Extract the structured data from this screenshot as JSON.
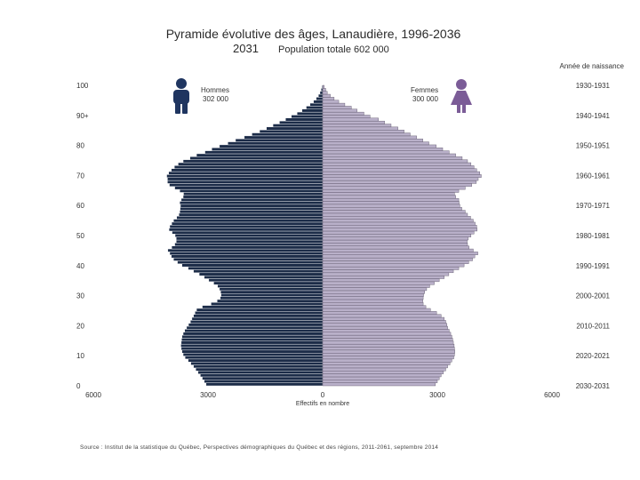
{
  "title": "Pyramide évolutive des âges, Lanaudière, 1996-2036",
  "year": "2031",
  "total_label": "Population totale 602 000",
  "birth_year_title": "Année de naissance",
  "men": {
    "label": "Hommes",
    "count": "302 000",
    "color": "#1c2c48"
  },
  "women": {
    "label": "Femmes",
    "count": "300 000",
    "color": "#b9b0c9"
  },
  "icon_colors": {
    "men": "#1f3560",
    "women": "#7b5c97"
  },
  "source": "Source : Institut de la statistique du Québec, Perspectives démographiques du Québec et des régions, 2011-2061, septembre 2014",
  "chart_data": {
    "type": "bar",
    "orientation": "horizontal-pyramid",
    "title": "Pyramide évolutive des âges, Lanaudière, 1996-2036",
    "xlabel": "Effectifs en nombre",
    "ylabel": "",
    "xlim": [
      -6000,
      6000
    ],
    "ylim": [
      0,
      100
    ],
    "xticks": [
      -6000,
      -3000,
      0,
      3000,
      6000
    ],
    "xtick_labels": [
      "6000",
      "3000",
      "0",
      "3000",
      "6000"
    ],
    "ytick_labels": [
      "0",
      "10",
      "20",
      "30",
      "40",
      "50",
      "60",
      "70",
      "80",
      "90+",
      "100"
    ],
    "ytick_values": [
      0,
      10,
      20,
      30,
      40,
      50,
      60,
      70,
      80,
      90,
      100
    ],
    "birth_labels": [
      "2030-2031",
      "2020-2021",
      "2010-2011",
      "2000-2001",
      "1990-1991",
      "1980-1981",
      "1970-1971",
      "1960-1961",
      "1950-1951",
      "1940-1941",
      "1930-1931"
    ],
    "birth_label_ages": [
      0,
      10,
      20,
      30,
      40,
      50,
      60,
      70,
      80,
      90,
      100
    ],
    "ages": [
      0,
      1,
      2,
      3,
      4,
      5,
      6,
      7,
      8,
      9,
      10,
      11,
      12,
      13,
      14,
      15,
      16,
      17,
      18,
      19,
      20,
      21,
      22,
      23,
      24,
      25,
      26,
      27,
      28,
      29,
      30,
      31,
      32,
      33,
      34,
      35,
      36,
      37,
      38,
      39,
      40,
      41,
      42,
      43,
      44,
      45,
      46,
      47,
      48,
      49,
      50,
      51,
      52,
      53,
      54,
      55,
      56,
      57,
      58,
      59,
      60,
      61,
      62,
      63,
      64,
      65,
      66,
      67,
      68,
      69,
      70,
      71,
      72,
      73,
      74,
      75,
      76,
      77,
      78,
      79,
      80,
      81,
      82,
      83,
      84,
      85,
      86,
      87,
      88,
      89,
      90,
      91,
      92,
      93,
      94,
      95,
      96,
      97,
      98,
      99,
      100
    ],
    "series": [
      {
        "name": "Hommes",
        "values": [
          3050,
          3100,
          3150,
          3200,
          3260,
          3320,
          3380,
          3450,
          3520,
          3600,
          3650,
          3680,
          3700,
          3710,
          3700,
          3690,
          3680,
          3650,
          3610,
          3560,
          3510,
          3460,
          3420,
          3380,
          3340,
          3300,
          3150,
          2920,
          2760,
          2680,
          2660,
          2670,
          2700,
          2750,
          2850,
          2980,
          3100,
          3230,
          3380,
          3520,
          3680,
          3800,
          3900,
          3960,
          4000,
          4050,
          3950,
          3870,
          3830,
          3830,
          3860,
          3940,
          4020,
          4000,
          3950,
          3900,
          3820,
          3760,
          3740,
          3730,
          3720,
          3740,
          3700,
          3650,
          3640,
          3740,
          3870,
          4010,
          4060,
          4060,
          4080,
          4030,
          3960,
          3880,
          3780,
          3650,
          3470,
          3300,
          3080,
          2900,
          2700,
          2480,
          2280,
          2050,
          1850,
          1650,
          1470,
          1300,
          1130,
          970,
          820,
          670,
          540,
          430,
          330,
          240,
          170,
          110,
          70,
          40,
          20
        ]
      },
      {
        "name": "Femmes",
        "values": [
          2950,
          3000,
          3050,
          3100,
          3160,
          3220,
          3270,
          3330,
          3380,
          3430,
          3450,
          3460,
          3450,
          3440,
          3420,
          3400,
          3380,
          3350,
          3310,
          3270,
          3250,
          3220,
          3180,
          3100,
          2980,
          2820,
          2700,
          2630,
          2620,
          2630,
          2640,
          2670,
          2720,
          2800,
          2920,
          3050,
          3180,
          3300,
          3420,
          3560,
          3700,
          3820,
          3920,
          3980,
          4060,
          3940,
          3830,
          3790,
          3780,
          3810,
          3880,
          3960,
          4040,
          4030,
          3990,
          3940,
          3870,
          3790,
          3730,
          3640,
          3590,
          3570,
          3560,
          3480,
          3450,
          3560,
          3730,
          3900,
          4020,
          4070,
          4150,
          4110,
          4030,
          3960,
          3880,
          3790,
          3650,
          3480,
          3310,
          3140,
          2970,
          2780,
          2620,
          2460,
          2290,
          2130,
          1970,
          1790,
          1620,
          1460,
          1240,
          1080,
          900,
          750,
          580,
          420,
          300,
          200,
          120,
          80,
          40
        ]
      }
    ]
  }
}
